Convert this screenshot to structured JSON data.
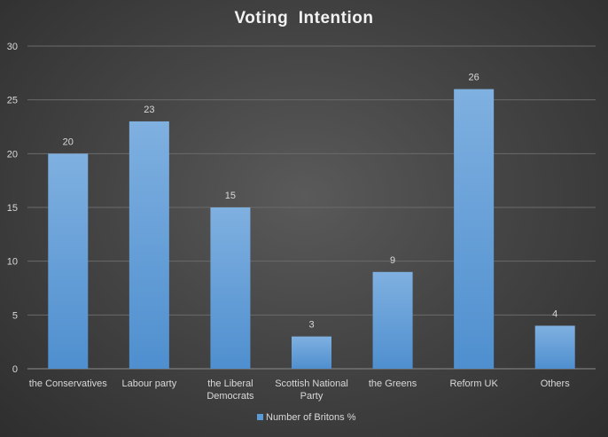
{
  "chart_data": {
    "type": "bar",
    "title": "Voting  Intention",
    "categories": [
      "the Conservatives",
      "Labour party",
      "the Liberal Democrats",
      "Scottish National Party",
      "the Greens",
      "Reform UK",
      "Others"
    ],
    "category_lines": [
      [
        "the Conservatives"
      ],
      [
        "Labour party"
      ],
      [
        "the Liberal",
        "Democrats"
      ],
      [
        "Scottish National",
        "Party"
      ],
      [
        "the Greens"
      ],
      [
        "Reform UK"
      ],
      [
        "Others"
      ]
    ],
    "series": [
      {
        "name": "Number of Britons %",
        "values": [
          20,
          23,
          15,
          3,
          9,
          26,
          4
        ]
      }
    ],
    "ylim": [
      0,
      30
    ],
    "yticks": [
      0,
      5,
      10,
      15,
      20,
      25,
      30
    ],
    "grid": true,
    "legend": "bottom",
    "colors": {
      "bar": "#5b9bd5",
      "bar_light": "#7fb0e0",
      "grid": "#6a6a6a",
      "axis": "#8c8c8c"
    }
  }
}
